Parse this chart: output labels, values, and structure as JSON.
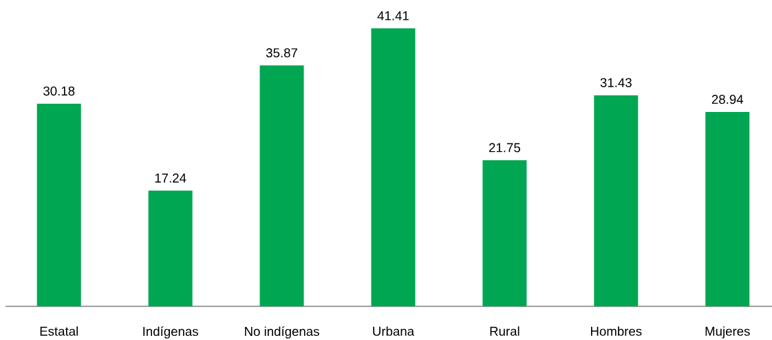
{
  "chart_data": {
    "type": "bar",
    "categories": [
      "Estatal",
      "Indígenas",
      "No indígenas",
      "Urbana",
      "Rural",
      "Hombres",
      "Mujeres"
    ],
    "values": [
      30.18,
      17.24,
      35.87,
      41.41,
      21.75,
      31.43,
      28.94
    ],
    "color": "#00a651",
    "data_labels": true
  }
}
